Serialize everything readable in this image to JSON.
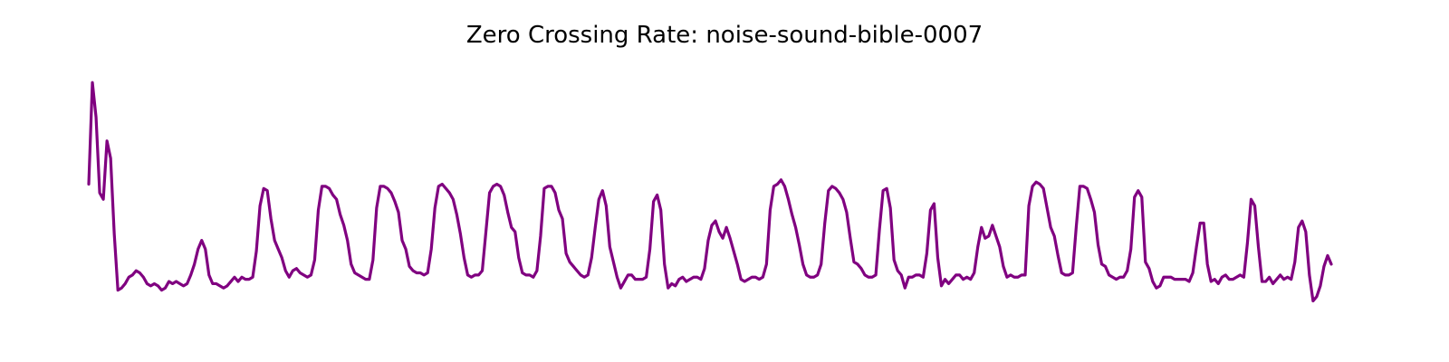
{
  "chart_data": {
    "type": "line",
    "title": "Zero Crossing Rate: noise-sound-bible-0007",
    "xlabel": "",
    "ylabel": "",
    "axes_visible": false,
    "grid": false,
    "line_color": "#800080",
    "ylim": [
      0,
      1
    ],
    "series": [
      {
        "values": [
          0.5,
          0.97,
          0.81,
          0.46,
          0.43,
          0.7,
          0.62,
          0.27,
          0.01,
          0.02,
          0.04,
          0.07,
          0.08,
          0.1,
          0.09,
          0.07,
          0.04,
          0.03,
          0.04,
          0.03,
          0.01,
          0.02,
          0.05,
          0.04,
          0.05,
          0.04,
          0.03,
          0.04,
          0.08,
          0.13,
          0.2,
          0.24,
          0.2,
          0.08,
          0.04,
          0.04,
          0.03,
          0.02,
          0.03,
          0.05,
          0.07,
          0.05,
          0.07,
          0.06,
          0.06,
          0.07,
          0.19,
          0.4,
          0.48,
          0.47,
          0.34,
          0.24,
          0.2,
          0.16,
          0.1,
          0.07,
          0.1,
          0.11,
          0.09,
          0.08,
          0.07,
          0.08,
          0.15,
          0.38,
          0.49,
          0.49,
          0.48,
          0.45,
          0.43,
          0.36,
          0.31,
          0.24,
          0.13,
          0.09,
          0.08,
          0.07,
          0.06,
          0.06,
          0.15,
          0.39,
          0.49,
          0.49,
          0.48,
          0.46,
          0.42,
          0.37,
          0.24,
          0.2,
          0.12,
          0.1,
          0.09,
          0.09,
          0.08,
          0.09,
          0.2,
          0.39,
          0.49,
          0.5,
          0.48,
          0.46,
          0.43,
          0.36,
          0.27,
          0.16,
          0.08,
          0.07,
          0.08,
          0.08,
          0.1,
          0.28,
          0.46,
          0.49,
          0.5,
          0.49,
          0.45,
          0.37,
          0.3,
          0.28,
          0.16,
          0.09,
          0.08,
          0.08,
          0.07,
          0.1,
          0.26,
          0.48,
          0.49,
          0.49,
          0.46,
          0.38,
          0.34,
          0.18,
          0.14,
          0.12,
          0.1,
          0.08,
          0.07,
          0.08,
          0.16,
          0.3,
          0.43,
          0.47,
          0.4,
          0.21,
          0.14,
          0.07,
          0.02,
          0.05,
          0.08,
          0.08,
          0.06,
          0.06,
          0.06,
          0.07,
          0.2,
          0.42,
          0.45,
          0.38,
          0.13,
          0.02,
          0.04,
          0.03,
          0.06,
          0.07,
          0.05,
          0.06,
          0.07,
          0.07,
          0.06,
          0.11,
          0.24,
          0.31,
          0.33,
          0.28,
          0.25,
          0.3,
          0.25,
          0.19,
          0.13,
          0.06,
          0.05,
          0.06,
          0.07,
          0.07,
          0.06,
          0.07,
          0.13,
          0.38,
          0.49,
          0.5,
          0.52,
          0.49,
          0.43,
          0.36,
          0.3,
          0.22,
          0.13,
          0.08,
          0.07,
          0.07,
          0.08,
          0.13,
          0.32,
          0.47,
          0.49,
          0.48,
          0.46,
          0.43,
          0.37,
          0.25,
          0.14,
          0.13,
          0.11,
          0.08,
          0.07,
          0.07,
          0.08,
          0.29,
          0.47,
          0.48,
          0.39,
          0.15,
          0.1,
          0.08,
          0.02,
          0.07,
          0.07,
          0.08,
          0.08,
          0.07,
          0.18,
          0.38,
          0.41,
          0.16,
          0.03,
          0.06,
          0.04,
          0.06,
          0.08,
          0.08,
          0.06,
          0.07,
          0.06,
          0.09,
          0.21,
          0.3,
          0.25,
          0.26,
          0.31,
          0.26,
          0.21,
          0.12,
          0.07,
          0.08,
          0.07,
          0.07,
          0.08,
          0.08,
          0.4,
          0.49,
          0.51,
          0.5,
          0.48,
          0.39,
          0.3,
          0.26,
          0.17,
          0.09,
          0.08,
          0.08,
          0.09,
          0.3,
          0.49,
          0.49,
          0.48,
          0.43,
          0.37,
          0.22,
          0.13,
          0.12,
          0.08,
          0.07,
          0.06,
          0.07,
          0.07,
          0.1,
          0.2,
          0.44,
          0.47,
          0.44,
          0.14,
          0.11,
          0.05,
          0.02,
          0.03,
          0.07,
          0.07,
          0.07,
          0.06,
          0.06,
          0.06,
          0.06,
          0.05,
          0.09,
          0.21,
          0.32,
          0.32,
          0.13,
          0.05,
          0.06,
          0.04,
          0.07,
          0.08,
          0.06,
          0.06,
          0.07,
          0.08,
          0.07,
          0.23,
          0.43,
          0.4,
          0.21,
          0.05,
          0.05,
          0.07,
          0.04,
          0.06,
          0.08,
          0.06,
          0.07,
          0.06,
          0.14,
          0.3,
          0.33,
          0.28,
          0.08,
          -0.04,
          -0.02,
          0.03,
          0.12,
          0.17,
          0.13
        ]
      }
    ]
  }
}
